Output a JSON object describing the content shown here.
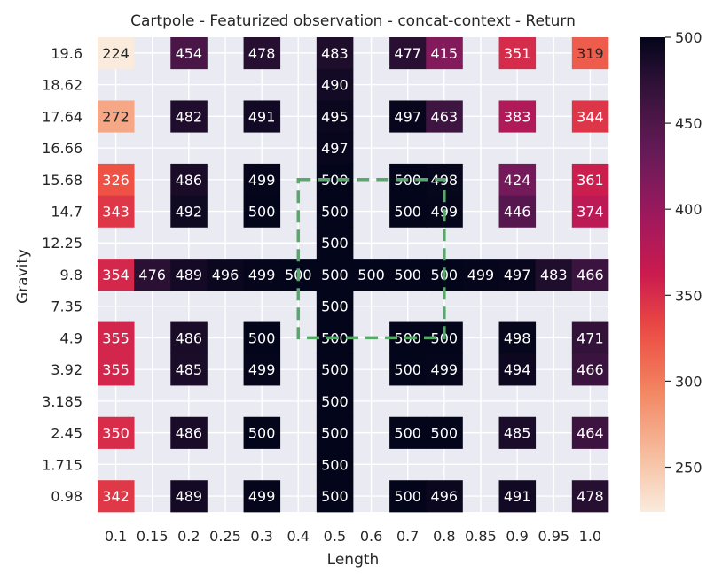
{
  "chart_data": {
    "type": "heatmap",
    "title": "Cartpole - Featurized observation - concat-context - Return",
    "xlabel": "Length",
    "ylabel": "Gravity",
    "x_categories": [
      "0.1",
      "0.15",
      "0.2",
      "0.25",
      "0.3",
      "0.4",
      "0.5",
      "0.6",
      "0.7",
      "0.8",
      "0.85",
      "0.9",
      "0.95",
      "1.0"
    ],
    "y_categories": [
      "19.6",
      "18.62",
      "17.64",
      "16.66",
      "15.68",
      "14.7",
      "12.25",
      "9.8",
      "7.35",
      "4.9",
      "3.92",
      "3.185",
      "2.45",
      "1.715",
      "0.98"
    ],
    "values": [
      [
        224,
        null,
        454,
        null,
        478,
        null,
        483,
        null,
        477,
        415,
        null,
        351,
        null,
        319
      ],
      [
        null,
        null,
        null,
        null,
        null,
        null,
        490,
        null,
        null,
        null,
        null,
        null,
        null,
        null
      ],
      [
        272,
        null,
        482,
        null,
        491,
        null,
        495,
        null,
        497,
        463,
        null,
        383,
        null,
        344
      ],
      [
        null,
        null,
        null,
        null,
        null,
        null,
        497,
        null,
        null,
        null,
        null,
        null,
        null,
        null
      ],
      [
        326,
        null,
        486,
        null,
        499,
        null,
        500,
        null,
        500,
        498,
        null,
        424,
        null,
        361
      ],
      [
        343,
        null,
        492,
        null,
        500,
        null,
        500,
        null,
        500,
        499,
        null,
        446,
        null,
        374
      ],
      [
        null,
        null,
        null,
        null,
        null,
        null,
        500,
        null,
        null,
        null,
        null,
        null,
        null,
        null
      ],
      [
        354,
        476,
        489,
        496,
        499,
        500,
        500,
        500,
        500,
        500,
        499,
        497,
        483,
        466
      ],
      [
        null,
        null,
        null,
        null,
        null,
        null,
        500,
        null,
        null,
        null,
        null,
        null,
        null,
        null
      ],
      [
        355,
        null,
        486,
        null,
        500,
        null,
        500,
        null,
        500,
        500,
        null,
        498,
        null,
        471
      ],
      [
        355,
        null,
        485,
        null,
        499,
        null,
        500,
        null,
        500,
        499,
        null,
        494,
        null,
        466
      ],
      [
        null,
        null,
        null,
        null,
        null,
        null,
        500,
        null,
        null,
        null,
        null,
        null,
        null,
        null
      ],
      [
        350,
        null,
        486,
        null,
        500,
        null,
        500,
        null,
        500,
        500,
        null,
        485,
        null,
        464
      ],
      [
        null,
        null,
        null,
        null,
        null,
        null,
        500,
        null,
        null,
        null,
        null,
        null,
        null,
        null
      ],
      [
        342,
        null,
        489,
        null,
        499,
        null,
        500,
        null,
        500,
        496,
        null,
        491,
        null,
        478
      ]
    ],
    "colorbar": {
      "min": 224,
      "max": 500,
      "ticks": [
        250,
        300,
        350,
        400,
        450,
        500
      ]
    },
    "colormap": "rocket_r",
    "training_region_box": {
      "x_from": "0.4",
      "x_to": "0.8",
      "y_from": "14.7",
      "y_to": "4.9",
      "color": "#59a86b",
      "style": "dashed"
    },
    "grid": true,
    "background_color": "#eaeaf2"
  }
}
